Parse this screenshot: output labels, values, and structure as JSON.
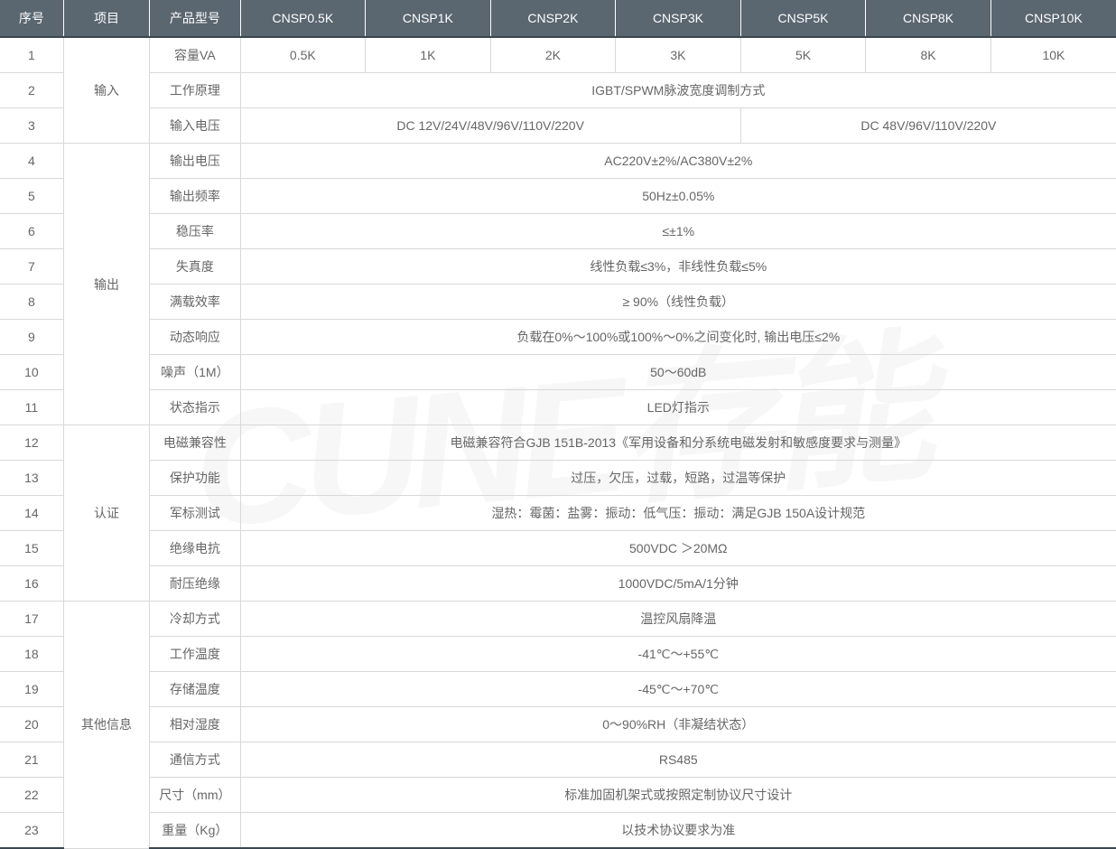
{
  "watermark": "CUNE存能",
  "headers": {
    "seq": "序号",
    "category": "项目",
    "param": "产品型号",
    "models": [
      "CNSP0.5K",
      "CNSP1K",
      "CNSP2K",
      "CNSP3K",
      "CNSP5K",
      "CNSP8K",
      "CNSP10K"
    ]
  },
  "colors": {
    "header_bg": "#5a6670",
    "header_text": "#ffffff",
    "cell_text": "#666666",
    "border": "#d8d8d8",
    "border_dark": "#3a4650",
    "watermark": "rgba(200,200,200,0.15)"
  },
  "categories": {
    "input": "输入",
    "output": "输出",
    "cert": "认证",
    "other": "其他信息"
  },
  "rows": {
    "r1": {
      "seq": "1",
      "param": "容量VA",
      "v1": "0.5K",
      "v2": "1K",
      "v3": "2K",
      "v4": "3K",
      "v5": "5K",
      "v6": "8K",
      "v7": "10K"
    },
    "r2": {
      "seq": "2",
      "param": "工作原理",
      "val": "IGBT/SPWM脉波宽度调制方式"
    },
    "r3": {
      "seq": "3",
      "param": "输入电压",
      "val1": "DC 12V/24V/48V/96V/110V/220V",
      "val2": "DC 48V/96V/110V/220V"
    },
    "r4": {
      "seq": "4",
      "param": "输出电压",
      "val": "AC220V±2%/AC380V±2%"
    },
    "r5": {
      "seq": "5",
      "param": "输出频率",
      "val": "50Hz±0.05%"
    },
    "r6": {
      "seq": "6",
      "param": "稳压率",
      "val": "≤±1%"
    },
    "r7": {
      "seq": "7",
      "param": "失真度",
      "val": "线性负载≤3%，非线性负载≤5%"
    },
    "r8": {
      "seq": "8",
      "param": "满载效率",
      "val": "≥ 90%（线性负载）"
    },
    "r9": {
      "seq": "9",
      "param": "动态响应",
      "val": "负载在0%～100%或100%～0%之间变化时, 输出电压≤2%"
    },
    "r10": {
      "seq": "10",
      "param": "噪声（1M）",
      "val": "50～60dB"
    },
    "r11": {
      "seq": "11",
      "param": "状态指示",
      "val": "LED灯指示"
    },
    "r12": {
      "seq": "12",
      "param": "电磁兼容性",
      "val": "电磁兼容符合GJB 151B-2013《军用设备和分系统电磁发射和敏感度要求与测量》"
    },
    "r13": {
      "seq": "13",
      "param": "保护功能",
      "val": "过压，欠压，过载，短路，过温等保护"
    },
    "r14": {
      "seq": "14",
      "param": "军标测试",
      "val": "湿热：霉菌：盐雾：振动：低气压：振动：满足GJB 150A设计规范"
    },
    "r15": {
      "seq": "15",
      "param": "绝缘电抗",
      "val": "500VDC  ＞20MΩ"
    },
    "r16": {
      "seq": "16",
      "param": "耐压绝缘",
      "val": "1000VDC/5mA/1分钟"
    },
    "r17": {
      "seq": "17",
      "param": "冷却方式",
      "val": "温控风扇降温"
    },
    "r18": {
      "seq": "18",
      "param": "工作温度",
      "val": "-41℃～+55℃"
    },
    "r19": {
      "seq": "19",
      "param": "存储温度",
      "val": "-45℃～+70℃"
    },
    "r20": {
      "seq": "20",
      "param": "相对湿度",
      "val": "0～90%RH（非凝结状态）"
    },
    "r21": {
      "seq": "21",
      "param": "通信方式",
      "val": "RS485"
    },
    "r22": {
      "seq": "22",
      "param": "尺寸（mm）",
      "val": "标准加固机架式或按照定制协议尺寸设计"
    },
    "r23": {
      "seq": "23",
      "param": "重量（Kg）",
      "val": "以技术协议要求为准"
    }
  }
}
